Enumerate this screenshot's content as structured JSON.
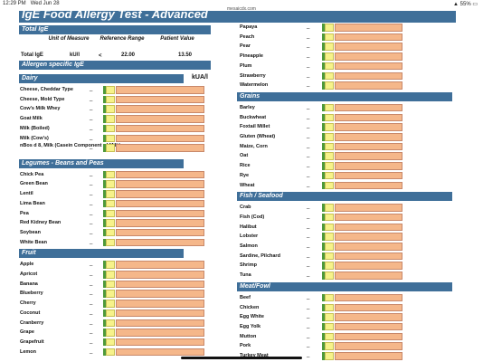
{
  "status": {
    "time": "12:29 PM",
    "date": "Wed Jun 28",
    "battery": "55%",
    "url": "mesaicdx.com"
  },
  "title": "IgE Food Allergy Test - Advanced",
  "total_ige": {
    "heading": "Total IgE",
    "col_unit": "Unit of Measure",
    "col_ref": "Reference Range",
    "col_patient": "Patient Value",
    "row_label": "Total IgE",
    "row_unit": "kU/l",
    "row_op": "<",
    "row_ref": "22.00",
    "row_value": "13.50"
  },
  "allergen_heading": "Allergen specific IgE",
  "unit_label": "kUA/l",
  "dash": "_",
  "left_sections": [
    {
      "name": "Dairy",
      "items": [
        "Cheese, Cheddar Type",
        "Cheese, Mold Type",
        "Cow's Milk Whey",
        "Goat Milk",
        "Milk (Boiled)",
        "Milk (Cow's)",
        "nBos d 8, Milk (Casein Component of Milk)"
      ]
    },
    {
      "name": "Legumes - Beans and Peas",
      "items": [
        "Chick Pea",
        "Green Bean",
        "Lentil",
        "Lima Bean",
        "Pea",
        "Red Kidney Bean",
        "Soybean",
        "White Bean"
      ]
    },
    {
      "name": "Fruit",
      "items": [
        "Apple",
        "Apricot",
        "Banana",
        "Blueberry",
        "Cherry",
        "Coconut",
        "Cranberry",
        "Grape",
        "Grapefruit",
        "Lemon"
      ]
    }
  ],
  "right_top_items": [
    "Papaya",
    "Peach",
    "Pear",
    "Pineapple",
    "Plum",
    "Strawberry",
    "Watermelon"
  ],
  "right_sections": [
    {
      "name": "Grains",
      "items": [
        "Barley",
        "Buckwheat",
        "Foxtail Millet",
        "Gluten (Wheat)",
        "Maize, Corn",
        "Oat",
        "Rice",
        "Rye",
        "Wheat"
      ]
    },
    {
      "name": "Fish / Seafood",
      "items": [
        "Crab",
        "Fish (Cod)",
        "Halibut",
        "Lobster",
        "Salmon",
        "Sardine, Pilchard",
        "Shrimp",
        "Tuna"
      ]
    },
    {
      "name": "Meat/Fowl",
      "items": [
        "Beef",
        "Chicken",
        "Egg White",
        "Egg Yolk",
        "Mutton",
        "Pork",
        "Turkey Meat"
      ]
    }
  ]
}
